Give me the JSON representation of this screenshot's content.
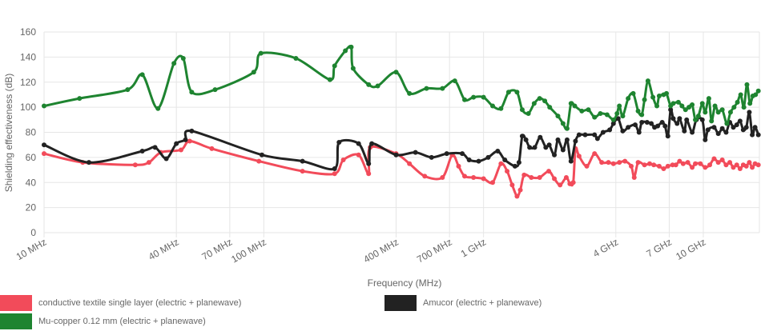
{
  "chart_data": {
    "type": "line",
    "ylabel": "Shielding effectiveness (dB)",
    "xlabel": "Frequency (MHz)",
    "x_scale": "log",
    "xlim": [
      10,
      18000
    ],
    "ylim": [
      0,
      160
    ],
    "y_ticks": [
      0,
      20,
      40,
      60,
      80,
      100,
      120,
      140,
      160
    ],
    "x_ticks": [
      {
        "value": 10,
        "label": "10 MHz"
      },
      {
        "value": 40,
        "label": "40 MHz"
      },
      {
        "value": 70,
        "label": "70 MHz"
      },
      {
        "value": 100,
        "label": "100 MHz"
      },
      {
        "value": 400,
        "label": "400 MHz"
      },
      {
        "value": 700,
        "label": "700 MHz"
      },
      {
        "value": 1000,
        "label": "1 GHz"
      },
      {
        "value": 4000,
        "label": "4 GHz"
      },
      {
        "value": 7000,
        "label": "7 GHz"
      },
      {
        "value": 10000,
        "label": "10 GHz"
      }
    ],
    "grid": true,
    "legend_position": "bottom",
    "series": [
      {
        "name": "conductive textile single layer (electric + planewave)",
        "color": "#f24b5a",
        "points": [
          [
            10,
            63
          ],
          [
            15,
            56
          ],
          [
            26,
            54
          ],
          [
            30,
            56
          ],
          [
            34,
            64
          ],
          [
            42,
            66
          ],
          [
            46,
            73
          ],
          [
            58,
            67
          ],
          [
            95,
            57
          ],
          [
            150,
            49
          ],
          [
            210,
            47
          ],
          [
            230,
            58
          ],
          [
            270,
            62
          ],
          [
            300,
            47
          ],
          [
            305,
            68
          ],
          [
            400,
            63
          ],
          [
            460,
            55
          ],
          [
            540,
            45
          ],
          [
            650,
            44
          ],
          [
            720,
            62
          ],
          [
            770,
            53
          ],
          [
            820,
            45
          ],
          [
            900,
            44
          ],
          [
            1000,
            43
          ],
          [
            1100,
            40
          ],
          [
            1200,
            55
          ],
          [
            1280,
            49
          ],
          [
            1350,
            38
          ],
          [
            1420,
            29
          ],
          [
            1470,
            34
          ],
          [
            1530,
            46
          ],
          [
            1650,
            44
          ],
          [
            1800,
            44
          ],
          [
            1980,
            49
          ],
          [
            2100,
            43
          ],
          [
            2230,
            38
          ],
          [
            2380,
            44
          ],
          [
            2470,
            39
          ],
          [
            2560,
            40
          ],
          [
            2620,
            67
          ],
          [
            2720,
            61
          ],
          [
            2950,
            53
          ],
          [
            3200,
            63
          ],
          [
            3450,
            56
          ],
          [
            3700,
            56
          ],
          [
            3900,
            55
          ],
          [
            4150,
            56
          ],
          [
            4400,
            57
          ],
          [
            4700,
            53
          ],
          [
            4850,
            44
          ],
          [
            5050,
            56
          ],
          [
            5400,
            54
          ],
          [
            5700,
            55
          ],
          [
            5950,
            54
          ],
          [
            6300,
            53
          ],
          [
            6600,
            51
          ],
          [
            6900,
            53
          ],
          [
            7250,
            54
          ],
          [
            7500,
            54
          ],
          [
            7800,
            57
          ],
          [
            8100,
            55
          ],
          [
            8500,
            56
          ],
          [
            8900,
            52
          ],
          [
            9200,
            55
          ],
          [
            9700,
            55
          ],
          [
            10200,
            52
          ],
          [
            10700,
            54
          ],
          [
            11200,
            59
          ],
          [
            11700,
            56
          ],
          [
            12200,
            58
          ],
          [
            12700,
            54
          ],
          [
            13200,
            56
          ],
          [
            13700,
            52
          ],
          [
            14200,
            54
          ],
          [
            14700,
            51
          ],
          [
            15200,
            54
          ],
          [
            15700,
            53
          ],
          [
            16200,
            56
          ],
          [
            16700,
            52
          ],
          [
            17200,
            55
          ],
          [
            17800,
            54
          ]
        ]
      },
      {
        "name": "Amucor (electric + planewave)",
        "color": "#222222",
        "points": [
          [
            10,
            70
          ],
          [
            16,
            56
          ],
          [
            28,
            65
          ],
          [
            32,
            68
          ],
          [
            36,
            59
          ],
          [
            40,
            71
          ],
          [
            44,
            74
          ],
          [
            47,
            81
          ],
          [
            98,
            62
          ],
          [
            150,
            57
          ],
          [
            210,
            51
          ],
          [
            220,
            72
          ],
          [
            270,
            71
          ],
          [
            300,
            55
          ],
          [
            310,
            71
          ],
          [
            400,
            62
          ],
          [
            490,
            64
          ],
          [
            580,
            60
          ],
          [
            680,
            63
          ],
          [
            800,
            63
          ],
          [
            860,
            58
          ],
          [
            950,
            57
          ],
          [
            1050,
            60
          ],
          [
            1160,
            65
          ],
          [
            1250,
            58
          ],
          [
            1390,
            53
          ],
          [
            1450,
            56
          ],
          [
            1500,
            77
          ],
          [
            1560,
            74
          ],
          [
            1620,
            68
          ],
          [
            1710,
            68
          ],
          [
            1810,
            76
          ],
          [
            1920,
            68
          ],
          [
            1990,
            70
          ],
          [
            2100,
            62
          ],
          [
            2180,
            74
          ],
          [
            2300,
            66
          ],
          [
            2400,
            74
          ],
          [
            2500,
            57
          ],
          [
            2620,
            73
          ],
          [
            2720,
            78
          ],
          [
            2900,
            78
          ],
          [
            3200,
            78
          ],
          [
            3300,
            75
          ],
          [
            3500,
            80
          ],
          [
            3750,
            82
          ],
          [
            3900,
            87
          ],
          [
            4100,
            91
          ],
          [
            4300,
            81
          ],
          [
            4550,
            84
          ],
          [
            4900,
            86
          ],
          [
            5100,
            80
          ],
          [
            5250,
            88
          ],
          [
            5550,
            88
          ],
          [
            5800,
            87
          ],
          [
            6000,
            84
          ],
          [
            6200,
            85
          ],
          [
            6500,
            88
          ],
          [
            6700,
            85
          ],
          [
            6900,
            77
          ],
          [
            7100,
            98
          ],
          [
            7300,
            91
          ],
          [
            7600,
            87
          ],
          [
            7800,
            91
          ],
          [
            8200,
            81
          ],
          [
            8400,
            90
          ],
          [
            8900,
            80
          ],
          [
            9300,
            90
          ],
          [
            9900,
            90
          ],
          [
            10200,
            74
          ],
          [
            10500,
            82
          ],
          [
            11200,
            84
          ],
          [
            11700,
            79
          ],
          [
            12200,
            83
          ],
          [
            12700,
            80
          ],
          [
            13200,
            88
          ],
          [
            13700,
            84
          ],
          [
            14200,
            86
          ],
          [
            14700,
            89
          ],
          [
            15200,
            82
          ],
          [
            15700,
            84
          ],
          [
            16200,
            96
          ],
          [
            16700,
            78
          ],
          [
            17200,
            84
          ],
          [
            17800,
            78
          ]
        ]
      },
      {
        "name": "Mu-copper 0.12 mm (electric + planewave)",
        "color": "#1e8430",
        "points": [
          [
            10,
            101
          ],
          [
            14.5,
            107
          ],
          [
            24,
            114
          ],
          [
            28,
            126
          ],
          [
            33,
            99
          ],
          [
            39,
            135
          ],
          [
            43,
            139
          ],
          [
            47,
            112
          ],
          [
            60,
            114
          ],
          [
            90,
            128
          ],
          [
            97,
            143
          ],
          [
            140,
            139
          ],
          [
            200,
            122
          ],
          [
            210,
            133
          ],
          [
            235,
            145
          ],
          [
            250,
            148
          ],
          [
            255,
            131
          ],
          [
            300,
            118
          ],
          [
            330,
            117
          ],
          [
            400,
            128
          ],
          [
            460,
            111
          ],
          [
            550,
            115
          ],
          [
            650,
            115
          ],
          [
            740,
            121
          ],
          [
            820,
            106
          ],
          [
            900,
            108
          ],
          [
            1000,
            108
          ],
          [
            1100,
            101
          ],
          [
            1200,
            99
          ],
          [
            1300,
            112
          ],
          [
            1420,
            112
          ],
          [
            1500,
            98
          ],
          [
            1600,
            95
          ],
          [
            1700,
            103
          ],
          [
            1800,
            107
          ],
          [
            1900,
            105
          ],
          [
            2000,
            100
          ],
          [
            2180,
            93
          ],
          [
            2300,
            87
          ],
          [
            2400,
            83
          ],
          [
            2500,
            103
          ],
          [
            2600,
            101
          ],
          [
            2800,
            97
          ],
          [
            3000,
            98
          ],
          [
            3200,
            92
          ],
          [
            3400,
            95
          ],
          [
            3650,
            94
          ],
          [
            3900,
            90
          ],
          [
            4050,
            95
          ],
          [
            4150,
            101
          ],
          [
            4300,
            93
          ],
          [
            4550,
            107
          ],
          [
            4800,
            111
          ],
          [
            5050,
            97
          ],
          [
            5250,
            94
          ],
          [
            5400,
            106
          ],
          [
            5600,
            121
          ],
          [
            5900,
            108
          ],
          [
            6150,
            101
          ],
          [
            6300,
            109
          ],
          [
            6600,
            110
          ],
          [
            6800,
            111
          ],
          [
            7100,
            101
          ],
          [
            7300,
            103
          ],
          [
            7700,
            104
          ],
          [
            8000,
            101
          ],
          [
            8300,
            98
          ],
          [
            8600,
            100
          ],
          [
            8900,
            102
          ],
          [
            9200,
            90
          ],
          [
            9500,
            93
          ],
          [
            9900,
            103
          ],
          [
            10200,
            96
          ],
          [
            10600,
            107
          ],
          [
            10900,
            89
          ],
          [
            11300,
            101
          ],
          [
            11700,
            96
          ],
          [
            12200,
            98
          ],
          [
            12800,
            87
          ],
          [
            13300,
            96
          ],
          [
            13800,
            100
          ],
          [
            14300,
            104
          ],
          [
            14800,
            110
          ],
          [
            15300,
            100
          ],
          [
            15800,
            118
          ],
          [
            16300,
            103
          ],
          [
            16800,
            109
          ],
          [
            17300,
            110
          ],
          [
            17800,
            113
          ]
        ]
      }
    ]
  }
}
